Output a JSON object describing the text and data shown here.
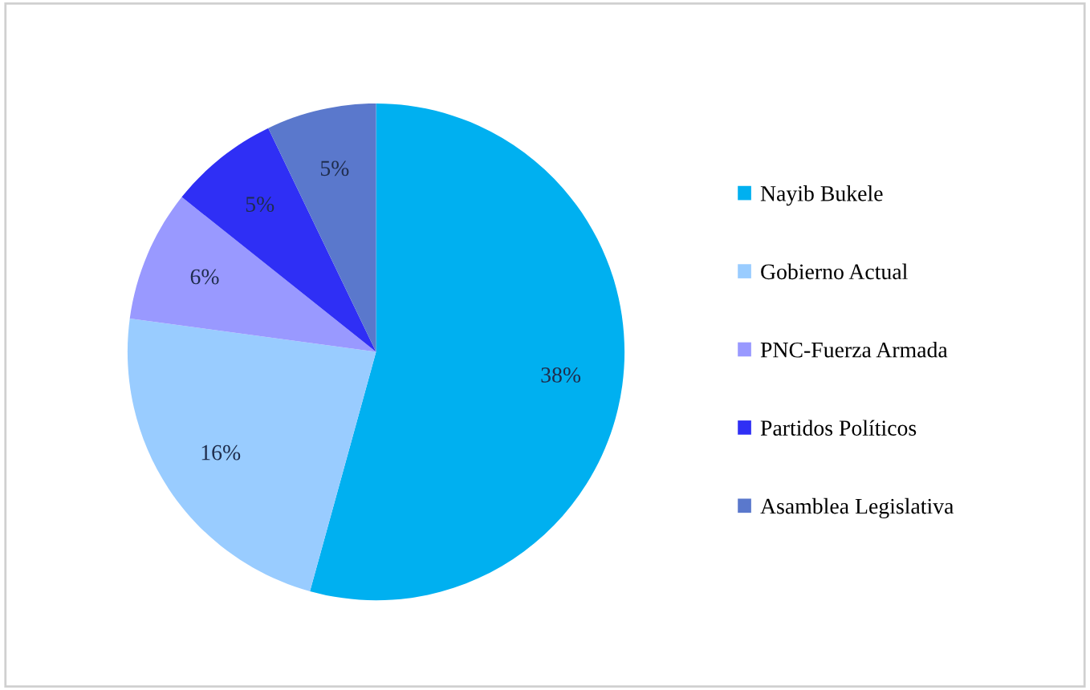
{
  "chart_data": {
    "type": "pie",
    "categories": [
      "Nayib Bukele",
      "Gobierno Actual",
      "PNC-Fuerza Armada",
      "Partidos Políticos",
      "Asamblea Legislativa"
    ],
    "values": [
      38,
      16,
      6,
      5,
      5
    ],
    "value_labels": [
      "38%",
      "16%",
      "6%",
      "5%",
      "5%"
    ],
    "colors": [
      "#00b0f0",
      "#99ccff",
      "#9999ff",
      "#2f2ff5",
      "#5a78cc"
    ],
    "legend": "right"
  }
}
